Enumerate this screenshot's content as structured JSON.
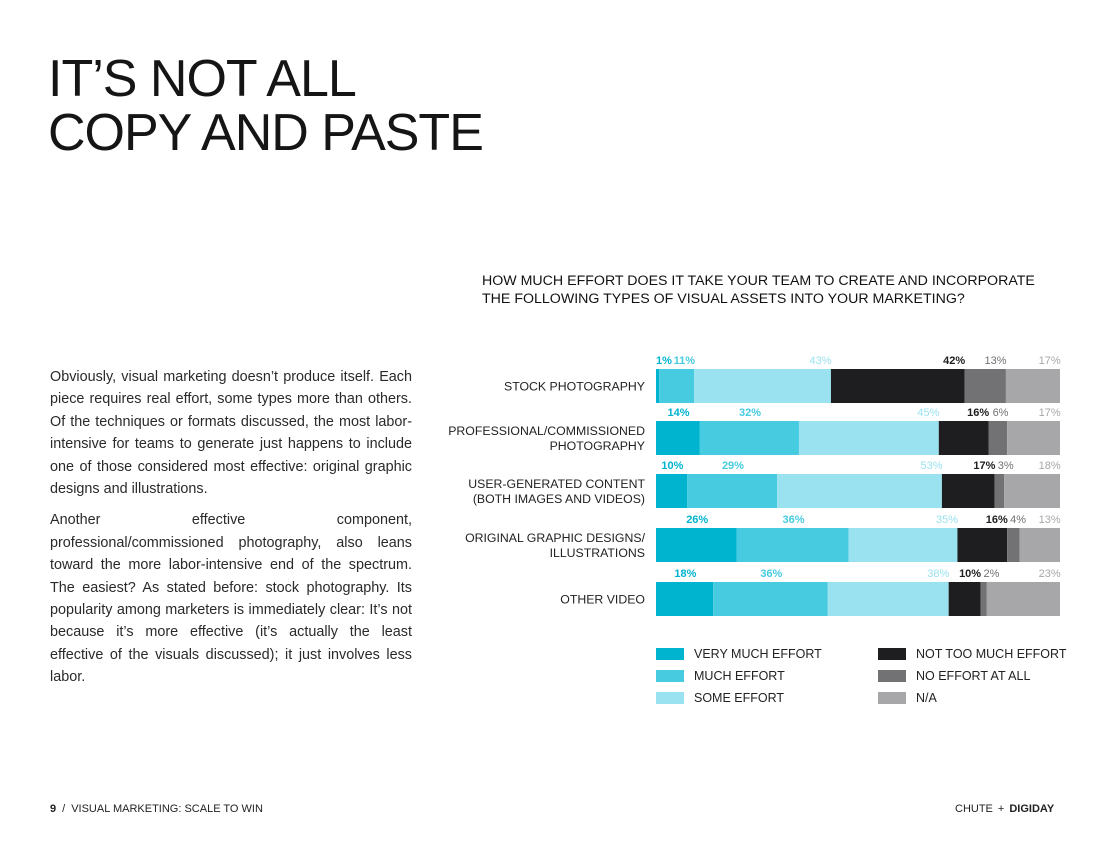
{
  "page": {
    "title_lines": [
      "IT’S NOT ALL",
      "COPY AND PASTE"
    ],
    "body_paragraphs": [
      "Obviously, visual marketing doesn’t produce itself. Each piece requires real effort, some types more than others. Of the techniques or formats discussed, the most labor-intensive for teams to generate just happens to include one of those considered most effective: original graphic designs and illustrations.",
      "Another effective component, professional/commissioned photography, also leans toward the more labor-intensive end of the spectrum. The easiest? As stated before: stock photography. Its popularity among marketers is immediately clear: It’s not because it’s more effective (it’s actually the least effective of the visuals discussed); it just involves less labor."
    ]
  },
  "footer": {
    "page_number": "9",
    "separator": "/",
    "publication": "VISUAL MARKETING: SCALE TO WIN",
    "brand_a": "CHUTE",
    "plus": "+",
    "brand_b": "DIGIDAY"
  },
  "chart_data": {
    "type": "bar",
    "orientation": "horizontal-stacked",
    "title_lines": [
      "HOW MUCH EFFORT DOES IT TAKE YOUR TEAM TO CREATE AND INCORPORATE",
      "THE FOLLOWING TYPES OF VISUAL ASSETS INTO YOUR MARKETING?"
    ],
    "categories": [
      [
        "STOCK PHOTOGRAPHY"
      ],
      [
        "PROFESSIONAL/COMMISSIONED",
        "PHOTOGRAPHY"
      ],
      [
        "USER-GENERATED CONTENT",
        "(BOTH IMAGES AND VIDEOS)"
      ],
      [
        "ORIGINAL GRAPHIC DESIGNS/",
        "ILLUSTRATIONS"
      ],
      [
        "OTHER VIDEO"
      ]
    ],
    "series": [
      {
        "name": "VERY MUCH EFFORT",
        "color": "#00b4d0",
        "label_color": "#00b4d0",
        "values": [
          1,
          14,
          10,
          26,
          18
        ]
      },
      {
        "name": "MUCH EFFORT",
        "color": "#47cbe0",
        "label_color": "#47cbe0",
        "values": [
          11,
          32,
          29,
          36,
          36
        ]
      },
      {
        "name": "SOME EFFORT",
        "color": "#9ae2ef",
        "label_color": "#9ae2ef",
        "values": [
          43,
          45,
          53,
          35,
          38
        ]
      },
      {
        "name": "NOT TOO MUCH EFFORT",
        "color": "#1e1e20",
        "label_color": "#1e1e20",
        "values": [
          42,
          16,
          17,
          16,
          10
        ]
      },
      {
        "name": "NO EFFORT AT ALL",
        "color": "#727274",
        "label_color": "#727274",
        "values": [
          13,
          6,
          3,
          4,
          2
        ]
      },
      {
        "name": "N/A",
        "color": "#a7a7a9",
        "label_color": "#a7a7a9",
        "values": [
          17,
          17,
          18,
          13,
          23
        ]
      }
    ],
    "value_suffix": "%",
    "legend": {
      "placement": "bottom",
      "columns": [
        [
          0,
          1,
          2
        ],
        [
          3,
          4,
          5
        ]
      ]
    }
  }
}
